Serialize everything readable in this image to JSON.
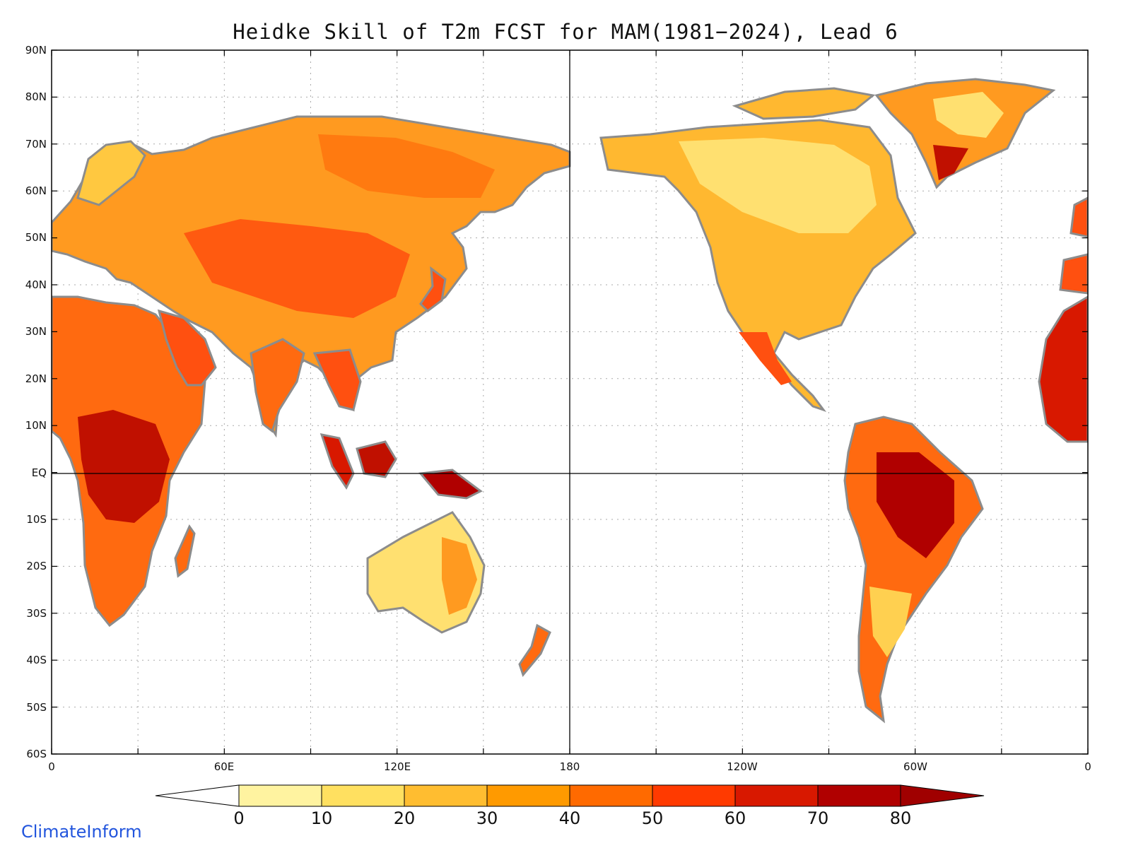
{
  "title": "Heidke Skill of T2m FCST for MAM(1981−2024), Lead 6",
  "brand": "ClimateInform",
  "map": {
    "projection": "equirectangular",
    "lon_range": [
      0,
      360
    ],
    "lat_range": [
      -60,
      90
    ],
    "lat_ticks": [
      "90N",
      "80N",
      "70N",
      "60N",
      "50N",
      "40N",
      "30N",
      "20N",
      "10N",
      "EQ",
      "10S",
      "20S",
      "30S",
      "40S",
      "50S",
      "60S"
    ],
    "lon_ticks": [
      "0",
      "60E",
      "120E",
      "180",
      "120W",
      "60W",
      "0"
    ],
    "grid": "dotted",
    "reference_lines": [
      "Equator",
      "180 meridian"
    ]
  },
  "colorbar": {
    "levels": [
      "0",
      "10",
      "20",
      "30",
      "40",
      "50",
      "60",
      "70",
      "80"
    ],
    "below_color": "#ffffff",
    "above_color": "#a00000",
    "colors": [
      "#fff3a0",
      "#ffe060",
      "#ffbd30",
      "#ff9a00",
      "#ff6a00",
      "#ff3a00",
      "#d81800",
      "#b00000"
    ]
  }
}
